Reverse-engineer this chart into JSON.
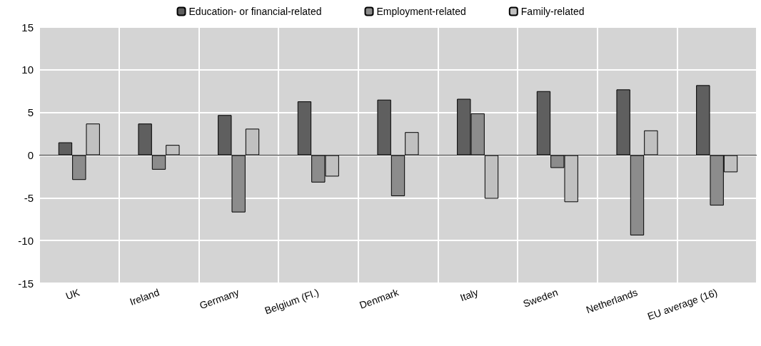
{
  "chart_data": {
    "type": "bar",
    "categories": [
      "UK",
      "Ireland",
      "Germany",
      "Belgium (Fl.)",
      "Denmark",
      "Italy",
      "Sweden",
      "Netherlands",
      "EU average (16)"
    ],
    "series": [
      {
        "name": "Education- or financial-related",
        "color": "#5f5f5f",
        "values": [
          1.5,
          3.7,
          4.7,
          6.3,
          6.5,
          6.6,
          7.5,
          7.7,
          8.2
        ]
      },
      {
        "name": "Employment-related",
        "color": "#8c8c8c",
        "values": [
          -2.9,
          -1.7,
          -6.7,
          -3.2,
          -4.8,
          4.9,
          -1.5,
          -9.4,
          -5.9
        ]
      },
      {
        "name": "Family-related",
        "color": "#c0c0c0",
        "values": [
          3.7,
          1.2,
          3.1,
          -2.5,
          2.7,
          -5.1,
          -5.5,
          2.9,
          -2.0
        ]
      }
    ],
    "ylim": [
      -15,
      15
    ],
    "yticks": [
      -15,
      -10,
      -5,
      0,
      5,
      10,
      15
    ],
    "grid": true,
    "legend": "top"
  }
}
